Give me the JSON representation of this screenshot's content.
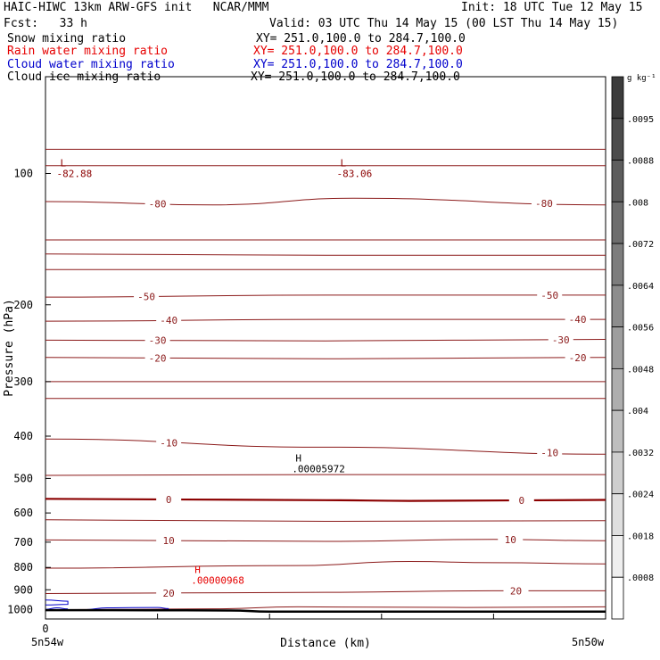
{
  "header": {
    "model_line": "HAIC-HIWC 13km ARW-GFS init   NCAR/MMM",
    "init_line": "Init: 18 UTC Tue 12 May 15",
    "fcst_line": "Fcst:   33 h",
    "valid_line": "Valid: 03 UTC Thu 14 May 15 (00 LST Thu 14 May 15)",
    "fields": [
      {
        "name": "Snow mixing ratio",
        "xy": "XY= 251.0,100.0 to 284.7,100.0",
        "color": "#000000"
      },
      {
        "name": "Rain water mixing ratio",
        "xy": "XY= 251.0,100.0 to 284.7,100.0",
        "color": "#e60000"
      },
      {
        "name": "Cloud water mixing ratio",
        "xy": "XY= 251.0,100.0 to 284.7,100.0",
        "color": "#0000cc"
      },
      {
        "name": "Cloud ice mixing ratio",
        "xy": "XY= 251.0,100.0 to 284.7,100.0",
        "color": "#000000"
      }
    ]
  },
  "chart_data": {
    "type": "line",
    "title": "",
    "xlabel": "Distance (km)",
    "ylabel": "Pressure (hPa)",
    "ylim": [
      1050,
      60
    ],
    "xlim": [
      0,
      100
    ],
    "x_tick_labels": [
      {
        "x": 0,
        "label": "0"
      }
    ],
    "x_end_labels": {
      "left": "5n54w",
      "right": "5n50w"
    },
    "y_ticks": [
      100,
      200,
      300,
      400,
      500,
      600,
      700,
      800,
      900,
      1000
    ],
    "temperature_contours": [
      {
        "level": "",
        "points": [
          [
            0,
            88
          ],
          [
            50,
            88
          ],
          [
            100,
            88
          ]
        ]
      },
      {
        "level": "",
        "points": [
          [
            0,
            96
          ],
          [
            50,
            96
          ],
          [
            100,
            96
          ]
        ]
      },
      {
        "level": "-80",
        "points": [
          [
            0,
            116
          ],
          [
            30,
            118
          ],
          [
            55,
            114
          ],
          [
            100,
            118
          ]
        ],
        "labels": [
          [
            20,
            -80
          ],
          [
            89,
            -80
          ]
        ]
      },
      {
        "level": "",
        "points": [
          [
            0,
            142
          ],
          [
            50,
            142
          ],
          [
            100,
            142
          ]
        ]
      },
      {
        "level": "",
        "points": [
          [
            0,
            153
          ],
          [
            50,
            154
          ],
          [
            100,
            154
          ]
        ]
      },
      {
        "level": "",
        "points": [
          [
            0,
            166
          ],
          [
            50,
            166
          ],
          [
            100,
            166
          ]
        ]
      },
      {
        "level": "-50",
        "points": [
          [
            0,
            192
          ],
          [
            50,
            190
          ],
          [
            100,
            190
          ]
        ],
        "labels": [
          [
            18,
            -50
          ],
          [
            90,
            -50
          ]
        ]
      },
      {
        "level": "-40",
        "points": [
          [
            0,
            218
          ],
          [
            50,
            216
          ],
          [
            100,
            216
          ]
        ],
        "labels": [
          [
            22,
            -40
          ],
          [
            95,
            -40
          ]
        ]
      },
      {
        "level": "-30",
        "points": [
          [
            0,
            241
          ],
          [
            50,
            242
          ],
          [
            100,
            240
          ]
        ],
        "labels": [
          [
            20,
            -30
          ],
          [
            92,
            -30
          ]
        ]
      },
      {
        "level": "-20",
        "points": [
          [
            0,
            264
          ],
          [
            50,
            266
          ],
          [
            100,
            264
          ]
        ],
        "labels": [
          [
            20,
            -20
          ],
          [
            95,
            -20
          ]
        ]
      },
      {
        "level": "",
        "points": [
          [
            0,
            300
          ],
          [
            50,
            300
          ],
          [
            100,
            300
          ]
        ]
      },
      {
        "level": "",
        "points": [
          [
            0,
            328
          ],
          [
            50,
            328
          ],
          [
            100,
            328
          ]
        ]
      },
      {
        "level": "-10",
        "points": [
          [
            0,
            406
          ],
          [
            50,
            424
          ],
          [
            100,
            440
          ]
        ],
        "labels": [
          [
            22,
            -10
          ],
          [
            90,
            -10
          ]
        ]
      },
      {
        "level": "",
        "points": [
          [
            0,
            492
          ],
          [
            50,
            490
          ],
          [
            100,
            490
          ]
        ]
      },
      {
        "level": "0",
        "points": [
          [
            0,
            557
          ],
          [
            50,
            561
          ],
          [
            65,
            563
          ],
          [
            100,
            560
          ]
        ],
        "labels": [
          [
            22,
            0
          ],
          [
            85,
            0
          ]
        ]
      },
      {
        "level": "",
        "points": [
          [
            0,
            622
          ],
          [
            50,
            627
          ],
          [
            100,
            625
          ]
        ]
      },
      {
        "level": "10",
        "points": [
          [
            0,
            692
          ],
          [
            50,
            697
          ],
          [
            80,
            690
          ],
          [
            100,
            695
          ]
        ],
        "labels": [
          [
            22,
            10
          ],
          [
            83,
            10
          ]
        ]
      },
      {
        "level": "",
        "points": [
          [
            0,
            803
          ],
          [
            45,
            792
          ],
          [
            65,
            775
          ],
          [
            80,
            780
          ],
          [
            100,
            785
          ]
        ]
      },
      {
        "level": "20",
        "points": [
          [
            0,
            918
          ],
          [
            50,
            912
          ],
          [
            80,
            905
          ],
          [
            100,
            905
          ]
        ],
        "labels": [
          [
            22,
            20
          ],
          [
            84,
            20
          ]
        ]
      },
      {
        "level": "",
        "points": [
          [
            0,
            1000
          ],
          [
            15,
            998
          ],
          [
            30,
            995
          ],
          [
            45,
            985
          ],
          [
            75,
            988
          ],
          [
            100,
            985
          ]
        ]
      }
    ],
    "minmax_labels": [
      {
        "kind": "L",
        "value": "-82.88",
        "x": 2,
        "p": 100,
        "color": "#8b0000"
      },
      {
        "kind": "L",
        "value": "-83.06",
        "x": 52,
        "p": 100,
        "color": "#8b0000"
      },
      {
        "kind": "H",
        "value": ".00005972",
        "x": 44,
        "p": 475,
        "color": "#000000"
      },
      {
        "kind": "H",
        "value": ".00000968",
        "x": 26,
        "p": 855,
        "color": "#e60000"
      }
    ],
    "cloud_water_contours": [
      {
        "points": [
          [
            0,
            950
          ],
          [
            4,
            956
          ],
          [
            4,
            972
          ],
          [
            0,
            975
          ]
        ]
      },
      {
        "points": [
          [
            0,
            998
          ],
          [
            2,
            990
          ],
          [
            4,
            996
          ]
        ]
      },
      {
        "points": [
          [
            7,
            1000
          ],
          [
            11,
            990
          ],
          [
            20,
            988
          ],
          [
            22,
            994
          ]
        ]
      }
    ],
    "terrain": [
      [
        0,
        1002
      ],
      [
        12,
        1002
      ],
      [
        25,
        1003
      ],
      [
        33,
        1004
      ],
      [
        40,
        1010
      ],
      [
        100,
        1010
      ]
    ],
    "colorbar": {
      "unit": "g kg⁻¹",
      "labels": [
        ".0095",
        ".0088",
        ".008",
        ".0072",
        ".0064",
        ".0056",
        ".0048",
        ".004",
        ".0032",
        ".0024",
        ".0018",
        ".0008"
      ]
    },
    "colors": {
      "temperature": "#8b1a1a",
      "zero_line": "#8b0000",
      "cloud_water": "#0000cc",
      "terrain": "#000000"
    }
  }
}
